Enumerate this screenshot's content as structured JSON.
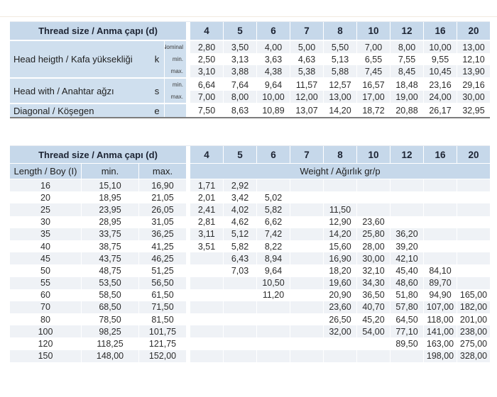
{
  "colors": {
    "header_blue": "#c6d8ea",
    "panel_blue": "#cfdfee",
    "stripe": "#eff2f6",
    "dark_rule": "#7c7c7c"
  },
  "top_table": {
    "header_label": "Thread size / Anma çapı (d)",
    "columns": [
      "4",
      "5",
      "6",
      "7",
      "8",
      "10",
      "12",
      "16",
      "20"
    ],
    "groups": [
      {
        "label": "Head heigth / Kafa yüksekliği",
        "symbol": "k",
        "rows": [
          {
            "sub": "Nominal",
            "values": [
              "2,80",
              "3,50",
              "4,00",
              "5,00",
              "5,50",
              "7,00",
              "8,00",
              "10,00",
              "13,00"
            ]
          },
          {
            "sub": "min.",
            "values": [
              "2,50",
              "3,13",
              "3,63",
              "4,63",
              "5,13",
              "6,55",
              "7,55",
              "9,55",
              "12,10"
            ]
          },
          {
            "sub": "max.",
            "values": [
              "3,10",
              "3,88",
              "4,38",
              "5,38",
              "5,88",
              "7,45",
              "8,45",
              "10,45",
              "13,90"
            ]
          }
        ]
      },
      {
        "label": "Head with / Anahtar ağzı",
        "symbol": "s",
        "rows": [
          {
            "sub": "min.",
            "values": [
              "6,64",
              "7,64",
              "9,64",
              "11,57",
              "12,57",
              "16,57",
              "18,48",
              "23,16",
              "29,16"
            ]
          },
          {
            "sub": "max.",
            "values": [
              "7,00",
              "8,00",
              "10,00",
              "12,00",
              "13,00",
              "17,00",
              "19,00",
              "24,00",
              "30,00"
            ]
          }
        ]
      },
      {
        "label": "Diagonal / Köşegen",
        "symbol": "e",
        "rows": [
          {
            "sub": "",
            "values": [
              "7,50",
              "8,63",
              "10,89",
              "13,07",
              "14,20",
              "18,72",
              "20,88",
              "26,17",
              "32,95"
            ]
          }
        ]
      }
    ]
  },
  "bottom_table": {
    "header_label": "Thread size / Anma çapı (d)",
    "columns": [
      "4",
      "5",
      "6",
      "7",
      "8",
      "10",
      "12",
      "16",
      "20"
    ],
    "length_header": "Length / Boy (I)",
    "min_header": "min.",
    "max_header": "max.",
    "weight_header": "Weight / Ağırlık gr/p",
    "rows": [
      {
        "length": "16",
        "min": "15,10",
        "max": "16,90",
        "weights": [
          "1,71",
          "2,92",
          "",
          "",
          "",
          "",
          "",
          "",
          ""
        ]
      },
      {
        "length": "20",
        "min": "18,95",
        "max": "21,05",
        "weights": [
          "2,01",
          "3,42",
          "5,02",
          "",
          "",
          "",
          "",
          "",
          ""
        ]
      },
      {
        "length": "25",
        "min": "23,95",
        "max": "26,05",
        "weights": [
          "2,41",
          "4,02",
          "5,82",
          "",
          "11,50",
          "",
          "",
          "",
          ""
        ]
      },
      {
        "length": "30",
        "min": "28,95",
        "max": "31,05",
        "weights": [
          "2,81",
          "4,62",
          "6,62",
          "",
          "12,90",
          "23,60",
          "",
          "",
          ""
        ]
      },
      {
        "length": "35",
        "min": "33,75",
        "max": "36,25",
        "weights": [
          "3,11",
          "5,12",
          "7,42",
          "",
          "14,20",
          "25,80",
          "36,20",
          "",
          ""
        ]
      },
      {
        "length": "40",
        "min": "38,75",
        "max": "41,25",
        "weights": [
          "3,51",
          "5,82",
          "8,22",
          "",
          "15,60",
          "28,00",
          "39,20",
          "",
          ""
        ]
      },
      {
        "length": "45",
        "min": "43,75",
        "max": "46,25",
        "weights": [
          "",
          "6,43",
          "8,94",
          "",
          "16,90",
          "30,00",
          "42,10",
          "",
          ""
        ]
      },
      {
        "length": "50",
        "min": "48,75",
        "max": "51,25",
        "weights": [
          "",
          "7,03",
          "9,64",
          "",
          "18,20",
          "32,10",
          "45,40",
          "84,10",
          ""
        ]
      },
      {
        "length": "55",
        "min": "53,50",
        "max": "56,50",
        "weights": [
          "",
          "",
          "10,50",
          "",
          "19,60",
          "34,30",
          "48,60",
          "89,70",
          ""
        ]
      },
      {
        "length": "60",
        "min": "58,50",
        "max": "61,50",
        "weights": [
          "",
          "",
          "11,20",
          "",
          "20,90",
          "36,50",
          "51,80",
          "94,90",
          "165,00"
        ]
      },
      {
        "length": "70",
        "min": "68,50",
        "max": "71,50",
        "weights": [
          "",
          "",
          "",
          "",
          "23,60",
          "40,70",
          "57,80",
          "107,00",
          "182,00"
        ]
      },
      {
        "length": "80",
        "min": "78,50",
        "max": "81,50",
        "weights": [
          "",
          "",
          "",
          "",
          "26,50",
          "45,20",
          "64,50",
          "118,00",
          "201,00"
        ]
      },
      {
        "length": "100",
        "min": "98,25",
        "max": "101,75",
        "weights": [
          "",
          "",
          "",
          "",
          "32,00",
          "54,00",
          "77,10",
          "141,00",
          "238,00"
        ]
      },
      {
        "length": "120",
        "min": "118,25",
        "max": "121,75",
        "weights": [
          "",
          "",
          "",
          "",
          "",
          "",
          "89,50",
          "163,00",
          "275,00"
        ]
      },
      {
        "length": "150",
        "min": "148,00",
        "max": "152,00",
        "weights": [
          "",
          "",
          "",
          "",
          "",
          "",
          "",
          "198,00",
          "328,00"
        ]
      }
    ]
  }
}
